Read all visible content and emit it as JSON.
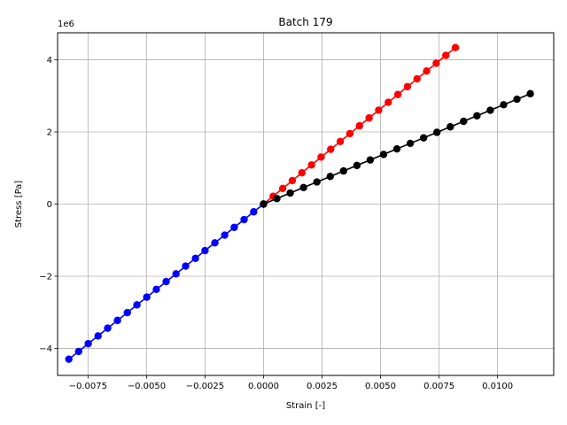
{
  "chart_data": {
    "type": "line",
    "title": "Batch 179",
    "xlabel": "Strain [-]",
    "ylabel": "Stress [Pa]",
    "y_offset_label": "1e6",
    "xlim": [
      -0.0088,
      0.0124
    ],
    "ylim": [
      -4.75,
      4.75
    ],
    "y_scale_factor": 1000000,
    "grid": true,
    "x_ticks": [
      -0.0075,
      -0.005,
      -0.0025,
      0.0,
      0.0025,
      0.005,
      0.0075,
      0.01
    ],
    "x_tick_labels": [
      "−0.0075",
      "−0.0050",
      "−0.0025",
      "0.0000",
      "0.0025",
      "0.0050",
      "0.0075",
      "0.0100"
    ],
    "y_ticks": [
      -4,
      -2,
      0,
      2,
      4
    ],
    "y_tick_labels": [
      "−4",
      "−2",
      "0",
      "2",
      "4"
    ],
    "series": [
      {
        "color": "#0000ff",
        "marker": "circle",
        "x": [
          0.0,
          -0.00042,
          -0.00083,
          -0.00125,
          -0.00166,
          -0.00208,
          -0.0025,
          -0.00291,
          -0.00333,
          -0.00374,
          -0.00416,
          -0.00458,
          -0.00499,
          -0.00541,
          -0.00582,
          -0.00624,
          -0.00666,
          -0.00707,
          -0.00749,
          -0.0079,
          -0.00832
        ],
        "y": [
          0.0,
          -0.215,
          -0.43,
          -0.645,
          -0.86,
          -1.075,
          -1.29,
          -1.505,
          -1.72,
          -1.935,
          -2.15,
          -2.365,
          -2.58,
          -2.795,
          -3.01,
          -3.225,
          -3.44,
          -3.655,
          -3.87,
          -4.085,
          -4.3
        ]
      },
      {
        "color": "#ff0000",
        "marker": "circle",
        "x": [
          0.0,
          0.00041,
          0.00082,
          0.00123,
          0.00164,
          0.00205,
          0.00246,
          0.00287,
          0.00328,
          0.00369,
          0.0041,
          0.00451,
          0.00492,
          0.00533,
          0.00574,
          0.00615,
          0.00656,
          0.00697,
          0.00738,
          0.00779,
          0.0082
        ],
        "y": [
          0.0,
          0.217,
          0.434,
          0.651,
          0.868,
          1.085,
          1.302,
          1.519,
          1.736,
          1.953,
          2.17,
          2.387,
          2.604,
          2.821,
          3.038,
          3.255,
          3.472,
          3.689,
          3.906,
          4.123,
          4.34
        ]
      },
      {
        "color": "#000000",
        "marker": "circle",
        "x": [
          0.0,
          0.00057,
          0.00114,
          0.00171,
          0.00228,
          0.00285,
          0.00342,
          0.00399,
          0.00456,
          0.00513,
          0.0057,
          0.00627,
          0.00684,
          0.00741,
          0.00798,
          0.00855,
          0.00912,
          0.00969,
          0.01026,
          0.01083,
          0.0114
        ],
        "y": [
          0.0,
          0.153,
          0.306,
          0.459,
          0.612,
          0.765,
          0.918,
          1.071,
          1.224,
          1.377,
          1.53,
          1.683,
          1.836,
          1.989,
          2.142,
          2.295,
          2.448,
          2.601,
          2.754,
          2.907,
          3.06
        ]
      }
    ]
  }
}
